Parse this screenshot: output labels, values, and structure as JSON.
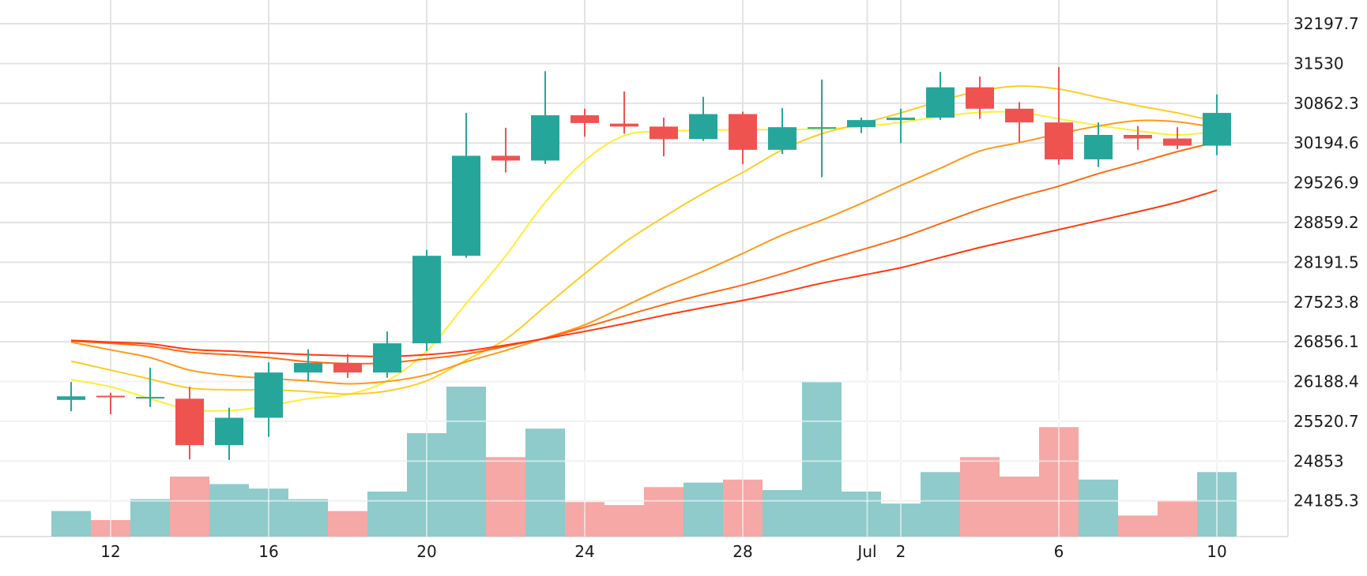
{
  "chart_data": {
    "type": "candlestick",
    "title": "",
    "xlabel": "",
    "ylabel": "",
    "ylim": [
      23585,
      32600
    ],
    "y_ticks": [
      "32197.7",
      "31530",
      "30862.3",
      "30194.6",
      "29526.9",
      "28859.2",
      "28191.5",
      "27523.8",
      "26856.1",
      "26188.4",
      "25520.7",
      "24853",
      "24185.3"
    ],
    "x_ticks": [
      {
        "index": 1,
        "label": "12"
      },
      {
        "index": 5,
        "label": "16"
      },
      {
        "index": 9,
        "label": "20"
      },
      {
        "index": 13,
        "label": "24"
      },
      {
        "index": 17,
        "label": "28"
      },
      {
        "index": 20.15,
        "label": "Jul"
      },
      {
        "index": 21,
        "label": "2"
      },
      {
        "index": 25,
        "label": "6"
      },
      {
        "index": 29,
        "label": "10"
      }
    ],
    "dates": [
      "Jun 11",
      "Jun 12",
      "Jun 13",
      "Jun 14",
      "Jun 15",
      "Jun 16",
      "Jun 17",
      "Jun 18",
      "Jun 19",
      "Jun 20",
      "Jun 21",
      "Jun 22",
      "Jun 23",
      "Jun 24",
      "Jun 25",
      "Jun 26",
      "Jun 27",
      "Jun 28",
      "Jun 29",
      "Jun 30",
      "Jul 1",
      "Jul 2",
      "Jul 3",
      "Jul 4",
      "Jul 5",
      "Jul 6",
      "Jul 7",
      "Jul 8",
      "Jul 9",
      "Jul 10"
    ],
    "ohlc": [
      {
        "open": 25880,
        "high": 26180,
        "low": 25690,
        "close": 25940
      },
      {
        "open": 25950,
        "high": 26000,
        "low": 25640,
        "close": 25930
      },
      {
        "open": 25930,
        "high": 26420,
        "low": 25760,
        "close": 25930
      },
      {
        "open": 25900,
        "high": 26100,
        "low": 24880,
        "close": 25120
      },
      {
        "open": 25120,
        "high": 25750,
        "low": 24870,
        "close": 25580
      },
      {
        "open": 25580,
        "high": 26510,
        "low": 25260,
        "close": 26340
      },
      {
        "open": 26340,
        "high": 26730,
        "low": 26190,
        "close": 26500
      },
      {
        "open": 26500,
        "high": 26650,
        "low": 26250,
        "close": 26340
      },
      {
        "open": 26340,
        "high": 27030,
        "low": 26250,
        "close": 26830
      },
      {
        "open": 26830,
        "high": 28400,
        "low": 26700,
        "close": 28300
      },
      {
        "open": 28300,
        "high": 30700,
        "low": 28270,
        "close": 29980
      },
      {
        "open": 29980,
        "high": 30450,
        "low": 29700,
        "close": 29900
      },
      {
        "open": 29900,
        "high": 31400,
        "low": 29840,
        "close": 30660
      },
      {
        "open": 30660,
        "high": 30770,
        "low": 30300,
        "close": 30530
      },
      {
        "open": 30520,
        "high": 31060,
        "low": 30350,
        "close": 30470
      },
      {
        "open": 30470,
        "high": 30620,
        "low": 29970,
        "close": 30260
      },
      {
        "open": 30260,
        "high": 30970,
        "low": 30230,
        "close": 30680
      },
      {
        "open": 30680,
        "high": 30720,
        "low": 29840,
        "close": 30080
      },
      {
        "open": 30080,
        "high": 30780,
        "low": 30010,
        "close": 30460
      },
      {
        "open": 30460,
        "high": 31260,
        "low": 29620,
        "close": 30460
      },
      {
        "open": 30460,
        "high": 30620,
        "low": 30360,
        "close": 30580
      },
      {
        "open": 30580,
        "high": 30770,
        "low": 30190,
        "close": 30620
      },
      {
        "open": 30620,
        "high": 31390,
        "low": 30580,
        "close": 31130
      },
      {
        "open": 31130,
        "high": 31310,
        "low": 30600,
        "close": 30770
      },
      {
        "open": 30770,
        "high": 30880,
        "low": 30210,
        "close": 30540
      },
      {
        "open": 30540,
        "high": 31470,
        "low": 29830,
        "close": 29920
      },
      {
        "open": 29920,
        "high": 30540,
        "low": 29790,
        "close": 30330
      },
      {
        "open": 30330,
        "high": 30480,
        "low": 30080,
        "close": 30270
      },
      {
        "open": 30270,
        "high": 30460,
        "low": 30090,
        "close": 30150
      },
      {
        "open": 30150,
        "high": 31010,
        "low": 29990,
        "close": 30700
      }
    ],
    "volume_scale": {
      "ylim": [
        0,
        100
      ]
    },
    "volume": [
      {
        "value": 17,
        "dir": "up"
      },
      {
        "value": 11,
        "dir": "down"
      },
      {
        "value": 25,
        "dir": "up"
      },
      {
        "value": 40,
        "dir": "down"
      },
      {
        "value": 35,
        "dir": "up"
      },
      {
        "value": 32,
        "dir": "up"
      },
      {
        "value": 25,
        "dir": "up"
      },
      {
        "value": 17,
        "dir": "down"
      },
      {
        "value": 30,
        "dir": "up"
      },
      {
        "value": 69,
        "dir": "up"
      },
      {
        "value": 100,
        "dir": "up"
      },
      {
        "value": 53,
        "dir": "down"
      },
      {
        "value": 72,
        "dir": "up"
      },
      {
        "value": 23,
        "dir": "down"
      },
      {
        "value": 21,
        "dir": "down"
      },
      {
        "value": 33,
        "dir": "down"
      },
      {
        "value": 36,
        "dir": "up"
      },
      {
        "value": 38,
        "dir": "down"
      },
      {
        "value": 31,
        "dir": "up"
      },
      {
        "value": 103,
        "dir": "up"
      },
      {
        "value": 30,
        "dir": "up"
      },
      {
        "value": 22,
        "dir": "up"
      },
      {
        "value": 43,
        "dir": "up"
      },
      {
        "value": 53,
        "dir": "down"
      },
      {
        "value": 40,
        "dir": "down"
      },
      {
        "value": 73,
        "dir": "down"
      },
      {
        "value": 38,
        "dir": "up"
      },
      {
        "value": 14,
        "dir": "down"
      },
      {
        "value": 24,
        "dir": "down"
      },
      {
        "value": 43,
        "dir": "up"
      }
    ],
    "moving_averages": [
      {
        "color": "#ffee33",
        "values": [
          26220,
          26100,
          25900,
          25720,
          25700,
          25780,
          25900,
          25970,
          26200,
          26700,
          27500,
          28300,
          29200,
          29900,
          30320,
          30390,
          30410,
          30420,
          30420,
          30430,
          30470,
          30540,
          30640,
          30710,
          30710,
          30600,
          30490,
          30400,
          30330,
          30390
        ]
      },
      {
        "color": "#ffcc22",
        "values": [
          26530,
          26380,
          26230,
          26080,
          26050,
          26050,
          26020,
          25980,
          26030,
          26200,
          26550,
          26900,
          27450,
          28000,
          28520,
          28950,
          29350,
          29700,
          30080,
          30350,
          30520,
          30700,
          30900,
          31070,
          31150,
          31100,
          30960,
          30820,
          30700,
          30550
        ]
      },
      {
        "color": "#ff9a1a",
        "values": [
          26850,
          26720,
          26590,
          26380,
          26290,
          26240,
          26200,
          26150,
          26190,
          26300,
          26520,
          26710,
          26920,
          27140,
          27450,
          27760,
          28040,
          28340,
          28650,
          28900,
          29180,
          29480,
          29770,
          30060,
          30200,
          30350,
          30480,
          30570,
          30550,
          30450
        ]
      },
      {
        "color": "#ff6a10",
        "values": [
          26870,
          26830,
          26780,
          26680,
          26640,
          26590,
          26520,
          26490,
          26500,
          26570,
          26650,
          26780,
          26920,
          27100,
          27290,
          27480,
          27650,
          27810,
          28000,
          28210,
          28400,
          28600,
          28840,
          29080,
          29290,
          29470,
          29680,
          29860,
          30050,
          30210
        ]
      },
      {
        "color": "#ff3a0a",
        "values": [
          26880,
          26850,
          26820,
          26730,
          26700,
          26670,
          26640,
          26620,
          26610,
          26640,
          26700,
          26800,
          26910,
          27030,
          27160,
          27300,
          27430,
          27550,
          27690,
          27840,
          27970,
          28100,
          28270,
          28440,
          28590,
          28740,
          28890,
          29040,
          29200,
          29400
        ]
      }
    ],
    "colors": {
      "up": "#26a69a",
      "down": "#ef5350",
      "volume_up": "#8ecbca",
      "volume_down": "#f5a8a6"
    }
  }
}
